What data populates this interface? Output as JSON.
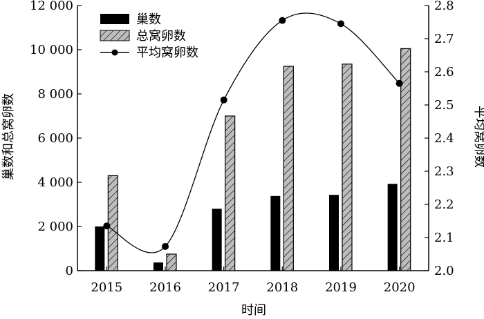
{
  "chart_data": {
    "type": "bar",
    "title": "",
    "categories": [
      "2015",
      "2016",
      "2017",
      "2018",
      "2019",
      "2020"
    ],
    "xlabel": "时间",
    "ylabel": "巢数和总窝卵数",
    "ylabel_right": "平均窝卵数",
    "ylim": [
      0,
      12000
    ],
    "ylim_right": [
      2.0,
      2.8
    ],
    "yticks": [
      0,
      2000,
      4000,
      6000,
      8000,
      10000,
      12000
    ],
    "yticks_right": [
      2.0,
      2.1,
      2.2,
      2.3,
      2.4,
      2.5,
      2.6,
      2.7,
      2.8
    ],
    "ytick_labels": [
      "0",
      "2 000",
      "4 000",
      "6 000",
      "8 000",
      "10 000",
      "12 000"
    ],
    "ytick_labels_right": [
      "2.0",
      "2.1",
      "2.2",
      "2.3",
      "2.4",
      "2.5",
      "2.6",
      "2.7",
      "2.8"
    ],
    "series": [
      {
        "name": "巢数",
        "kind": "bar",
        "axis": "left",
        "fill": "#000000",
        "values": [
          2000,
          370,
          2800,
          3380,
          3430,
          3930
        ]
      },
      {
        "name": "总窝卵数",
        "kind": "bar",
        "axis": "left",
        "fill": "hatched-gray",
        "values": [
          4300,
          750,
          7000,
          9250,
          9350,
          10050
        ]
      },
      {
        "name": "平均窝卵数",
        "kind": "line",
        "axis": "right",
        "smooth": true,
        "marker": "filled-circle",
        "values": [
          2.135,
          2.073,
          2.515,
          2.755,
          2.745,
          2.565
        ]
      }
    ],
    "legend_position": "top-left",
    "grid": false
  }
}
